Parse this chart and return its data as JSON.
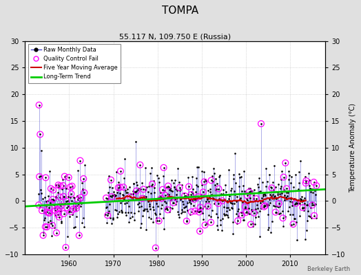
{
  "title": "TOMPA",
  "subtitle": "55.117 N, 109.750 E (Russia)",
  "credit": "Berkeley Earth",
  "ylabel_right": "Temperature Anomaly (°C)",
  "xlim": [
    1950,
    2018
  ],
  "ylim": [
    -10,
    30
  ],
  "yticks_left": [
    -10,
    -5,
    0,
    5,
    10,
    15,
    20,
    25,
    30
  ],
  "yticks_right": [
    -10,
    -5,
    0,
    5,
    10,
    15,
    20,
    25,
    30
  ],
  "xticks": [
    1960,
    1970,
    1980,
    1990,
    2000,
    2010
  ],
  "seed": 42,
  "raw_color": "#4444cc",
  "qc_color": "#ff00ff",
  "ma_color": "#cc0000",
  "trend_color": "#00cc00",
  "background_color": "#e0e0e0",
  "plot_bg_color": "#ffffff",
  "grid_color": "#bbbbbb",
  "gap_start": 1963.5,
  "gap_end": 1968.2
}
